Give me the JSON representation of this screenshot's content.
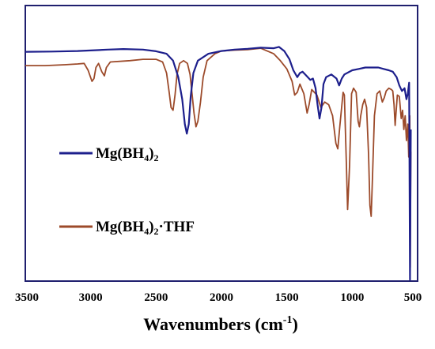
{
  "chart_data": {
    "type": "line",
    "title": "",
    "xlabel": "Wavenumbers (cm",
    "xlabel_sup": "-1",
    "xlabel_close": ")",
    "ylabel": "",
    "x_reversed": true,
    "xlim": [
      3500,
      500
    ],
    "ylim": [
      0,
      100
    ],
    "x_ticks": [
      3500,
      3000,
      2500,
      2000,
      1500,
      1000,
      500
    ],
    "x_tick_labels": [
      "3500",
      "3000",
      "2500",
      "2000",
      "1500",
      "1000",
      "500"
    ],
    "y_ticks_shown": false,
    "grid": false,
    "legend_position": "left",
    "colors": {
      "frame": "#1f1f6e",
      "axis": "#666666"
    },
    "series": [
      {
        "name": "Mg(BH",
        "name_sub": "4",
        "name_tail": ")",
        "name_sub2": "2",
        "name_suffix": "",
        "color": "#1d1f8c",
        "points": [
          [
            3500,
            83.2
          ],
          [
            3300,
            83.3
          ],
          [
            3100,
            83.5
          ],
          [
            2950,
            83.8
          ],
          [
            2870,
            84.0
          ],
          [
            2750,
            84.2
          ],
          [
            2600,
            84.0
          ],
          [
            2500,
            83.4
          ],
          [
            2420,
            82.5
          ],
          [
            2370,
            80.0
          ],
          [
            2330,
            74.0
          ],
          [
            2300,
            66.0
          ],
          [
            2280,
            57.0
          ],
          [
            2265,
            53.5
          ],
          [
            2250,
            57.0
          ],
          [
            2235,
            67.0
          ],
          [
            2215,
            75.5
          ],
          [
            2180,
            80.0
          ],
          [
            2100,
            82.5
          ],
          [
            2000,
            83.5
          ],
          [
            1900,
            84.0
          ],
          [
            1800,
            84.3
          ],
          [
            1700,
            84.7
          ],
          [
            1600,
            84.5
          ],
          [
            1560,
            85.0
          ],
          [
            1520,
            83.5
          ],
          [
            1480,
            80.5
          ],
          [
            1450,
            76.5
          ],
          [
            1420,
            74.0
          ],
          [
            1400,
            75.5
          ],
          [
            1380,
            76.0
          ],
          [
            1350,
            74.5
          ],
          [
            1320,
            73.0
          ],
          [
            1300,
            73.5
          ],
          [
            1280,
            70.0
          ],
          [
            1265,
            64.0
          ],
          [
            1250,
            59.0
          ],
          [
            1235,
            63.0
          ],
          [
            1220,
            71.5
          ],
          [
            1200,
            74.0
          ],
          [
            1160,
            75.0
          ],
          [
            1120,
            73.5
          ],
          [
            1100,
            71.0
          ],
          [
            1080,
            73.5
          ],
          [
            1060,
            75.0
          ],
          [
            1000,
            76.5
          ],
          [
            950,
            77.0
          ],
          [
            900,
            77.5
          ],
          [
            850,
            77.5
          ],
          [
            800,
            77.5
          ],
          [
            760,
            77.0
          ],
          [
            720,
            76.5
          ],
          [
            690,
            76.0
          ],
          [
            660,
            74.0
          ],
          [
            640,
            71.0
          ],
          [
            620,
            69.0
          ],
          [
            600,
            70.0
          ],
          [
            585,
            66.0
          ],
          [
            575,
            68.0
          ],
          [
            565,
            72.0
          ],
          [
            558,
            0.5
          ],
          [
            552,
            55.0
          ]
        ]
      },
      {
        "name": "Mg(BH",
        "name_sub": "4",
        "name_tail": ")",
        "name_sub2": "2",
        "name_suffix": "·THF",
        "color": "#9c4a2a",
        "points": [
          [
            3500,
            78.2
          ],
          [
            3350,
            78.2
          ],
          [
            3200,
            78.5
          ],
          [
            3100,
            78.8
          ],
          [
            3050,
            79.0
          ],
          [
            3020,
            76.5
          ],
          [
            2990,
            72.5
          ],
          [
            2975,
            73.5
          ],
          [
            2960,
            77.5
          ],
          [
            2940,
            79.0
          ],
          [
            2915,
            76.0
          ],
          [
            2895,
            74.5
          ],
          [
            2880,
            77.5
          ],
          [
            2850,
            79.5
          ],
          [
            2700,
            80.0
          ],
          [
            2600,
            80.5
          ],
          [
            2500,
            80.5
          ],
          [
            2450,
            79.5
          ],
          [
            2420,
            75.5
          ],
          [
            2400,
            68.5
          ],
          [
            2385,
            63.0
          ],
          [
            2370,
            62.0
          ],
          [
            2355,
            67.5
          ],
          [
            2340,
            75.0
          ],
          [
            2320,
            79.0
          ],
          [
            2290,
            80.0
          ],
          [
            2260,
            79.0
          ],
          [
            2240,
            75.0
          ],
          [
            2225,
            68.0
          ],
          [
            2210,
            61.0
          ],
          [
            2195,
            56.0
          ],
          [
            2180,
            58.0
          ],
          [
            2160,
            65.0
          ],
          [
            2140,
            74.0
          ],
          [
            2110,
            80.0
          ],
          [
            2050,
            82.5
          ],
          [
            2000,
            83.5
          ],
          [
            1900,
            83.8
          ],
          [
            1800,
            84.0
          ],
          [
            1700,
            84.5
          ],
          [
            1600,
            82.5
          ],
          [
            1550,
            80.0
          ],
          [
            1500,
            77.0
          ],
          [
            1460,
            72.5
          ],
          [
            1440,
            67.5
          ],
          [
            1420,
            68.5
          ],
          [
            1400,
            71.5
          ],
          [
            1370,
            68.0
          ],
          [
            1345,
            61.0
          ],
          [
            1330,
            64.0
          ],
          [
            1310,
            69.5
          ],
          [
            1290,
            68.5
          ],
          [
            1270,
            67.5
          ],
          [
            1240,
            63.0
          ],
          [
            1210,
            65.0
          ],
          [
            1180,
            64.0
          ],
          [
            1150,
            60.0
          ],
          [
            1125,
            50.0
          ],
          [
            1110,
            48.0
          ],
          [
            1095,
            56.0
          ],
          [
            1070,
            68.5
          ],
          [
            1060,
            67.5
          ],
          [
            1045,
            43.0
          ],
          [
            1035,
            26.0
          ],
          [
            1020,
            42.0
          ],
          [
            1005,
            68.0
          ],
          [
            990,
            70.0
          ],
          [
            970,
            68.5
          ],
          [
            955,
            58.0
          ],
          [
            945,
            56.0
          ],
          [
            935,
            60.0
          ],
          [
            920,
            64.0
          ],
          [
            905,
            66.0
          ],
          [
            890,
            63.0
          ],
          [
            875,
            46.0
          ],
          [
            865,
            27.5
          ],
          [
            855,
            23.5
          ],
          [
            845,
            38.0
          ],
          [
            830,
            60.0
          ],
          [
            810,
            68.0
          ],
          [
            790,
            69.0
          ],
          [
            770,
            65.0
          ],
          [
            755,
            66.5
          ],
          [
            740,
            69.0
          ],
          [
            720,
            70.0
          ],
          [
            700,
            69.5
          ],
          [
            690,
            69.0
          ],
          [
            680,
            64.0
          ],
          [
            672,
            56.5
          ],
          [
            665,
            61.0
          ],
          [
            655,
            67.5
          ],
          [
            640,
            67.0
          ],
          [
            625,
            59.0
          ],
          [
            615,
            62.0
          ],
          [
            605,
            55.0
          ],
          [
            595,
            60.0
          ],
          [
            585,
            51.0
          ],
          [
            575,
            57.0
          ],
          [
            568,
            45.0
          ],
          [
            560,
            60.0
          ],
          [
            556,
            5.0
          ],
          [
            552,
            47.0
          ]
        ]
      }
    ]
  }
}
